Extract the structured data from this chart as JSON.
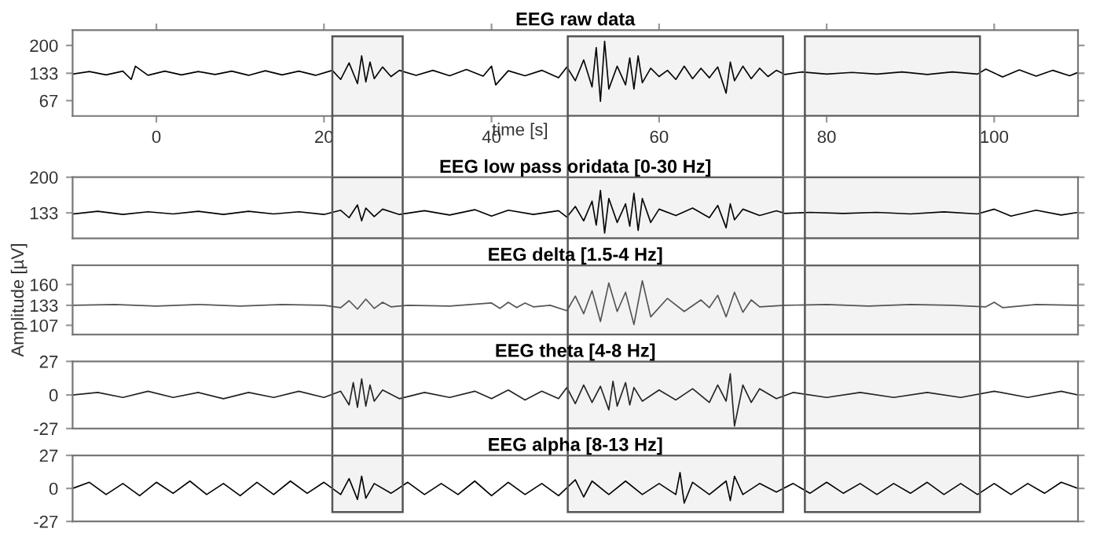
{
  "chart_data": [
    {
      "type": "line",
      "title": "EEG raw data",
      "xlabel": "time [s]",
      "xlim": [
        -10,
        110
      ],
      "xticks": [
        0,
        20,
        40,
        60,
        80,
        100
      ],
      "ylim": [
        30,
        237
      ],
      "yticks": [
        67,
        133,
        200
      ],
      "series": [
        {
          "color": "#000000",
          "x": [
            -10,
            -8,
            -6,
            -4,
            -3,
            -2.5,
            -1,
            1,
            3,
            5,
            7,
            9,
            11,
            13,
            15,
            17,
            19,
            21,
            22,
            23,
            24,
            24.5,
            25,
            25.5,
            26,
            27,
            28,
            29,
            31,
            33,
            35,
            37,
            39,
            40,
            40.5,
            42,
            44,
            46,
            48,
            49,
            50,
            51,
            52,
            52.5,
            53,
            53.5,
            54,
            55,
            56,
            56.5,
            57,
            57.5,
            58,
            59,
            60,
            61,
            62,
            63,
            64,
            65,
            66,
            67,
            68,
            68.5,
            69,
            70,
            71,
            72,
            73,
            74,
            75,
            77,
            80,
            83,
            86,
            89,
            92,
            95,
            98,
            99,
            101,
            103,
            105,
            107,
            109,
            110
          ],
          "values": [
            131,
            137,
            129,
            138,
            118,
            150,
            128,
            138,
            129,
            137,
            130,
            138,
            128,
            139,
            129,
            138,
            128,
            140,
            118,
            158,
            108,
            175,
            112,
            160,
            120,
            148,
            125,
            140,
            128,
            140,
            127,
            142,
            126,
            150,
            105,
            139,
            127,
            140,
            122,
            148,
            115,
            165,
            100,
            195,
            65,
            210,
            95,
            150,
            105,
            170,
            95,
            175,
            110,
            145,
            125,
            140,
            118,
            150,
            120,
            145,
            122,
            148,
            85,
            160,
            115,
            150,
            120,
            145,
            125,
            140,
            130,
            136,
            131,
            135,
            131,
            136,
            130,
            136,
            131,
            143,
            124,
            141,
            126,
            140,
            127,
            135
          ]
        }
      ],
      "bands": [
        {
          "axis": "x",
          "from": 21,
          "to": 29.4,
          "color": "#555555"
        },
        {
          "axis": "x",
          "from": 49.1,
          "to": 74.8,
          "color": "#555555"
        },
        {
          "axis": "x",
          "from": 77.4,
          "to": 98.3,
          "color": "#555555"
        }
      ]
    },
    {
      "type": "line",
      "title": "EEG low pass oridata [0-30 Hz]",
      "xlim": [
        -10,
        110
      ],
      "bands": [
        {
          "axis": "x",
          "from": 21,
          "to": 29.4,
          "color": "#555555"
        },
        {
          "axis": "x",
          "from": 49.1,
          "to": 74.8,
          "color": "#555555"
        },
        {
          "axis": "x",
          "from": 77.4,
          "to": 98.3,
          "color": "#555555"
        }
      ],
      "ylim": [
        85,
        200
      ],
      "yticks": [
        133,
        200
      ],
      "tick_labels": "y",
      "series": [
        {
          "color": "#000000",
          "x": [
            -10,
            -7,
            -4,
            -1,
            2,
            5,
            8,
            11,
            14,
            17,
            20,
            22,
            23,
            24,
            24.5,
            25,
            26,
            27,
            29,
            32,
            35,
            38,
            40,
            42,
            45,
            48,
            49,
            50,
            51,
            52,
            52.5,
            53,
            53.5,
            54,
            55,
            56,
            56.5,
            57,
            57.5,
            58,
            59,
            60,
            62,
            64,
            66,
            67,
            68,
            68.5,
            69,
            70,
            72,
            74,
            75,
            78,
            82,
            86,
            90,
            94,
            98,
            100,
            102,
            105,
            108,
            110
          ],
          "values": [
            131,
            136,
            130,
            135,
            131,
            136,
            130,
            136,
            131,
            135,
            130,
            138,
            124,
            148,
            118,
            142,
            126,
            140,
            130,
            137,
            129,
            139,
            127,
            138,
            130,
            137,
            125,
            145,
            118,
            155,
            110,
            175,
            95,
            160,
            115,
            150,
            108,
            170,
            100,
            160,
            115,
            140,
            128,
            142,
            124,
            147,
            105,
            150,
            120,
            140,
            128,
            137,
            132,
            134,
            132,
            134,
            131,
            135,
            131,
            140,
            127,
            138,
            129,
            134
          ]
        }
      ]
    },
    {
      "type": "line",
      "title": "EEG delta [1.5-4 Hz]",
      "ylabel": "Amplitude [µV]",
      "xlim": [
        -10,
        110
      ],
      "bands": [
        {
          "axis": "x",
          "from": 21,
          "to": 29.4,
          "color": "#555555"
        },
        {
          "axis": "x",
          "from": 49.1,
          "to": 74.8,
          "color": "#555555"
        },
        {
          "axis": "x",
          "from": 77.4,
          "to": 98.3,
          "color": "#555555"
        }
      ],
      "ylim": [
        95,
        185
      ],
      "yticks": [
        107,
        133,
        160
      ],
      "tick_labels": "y",
      "series": [
        {
          "color": "#555555",
          "x": [
            -10,
            -5,
            0,
            5,
            10,
            15,
            20,
            22,
            23,
            24,
            25,
            26,
            27,
            28,
            30,
            35,
            40,
            41,
            42,
            43,
            44,
            45,
            47,
            49,
            50,
            51,
            52,
            53,
            54,
            55,
            56,
            57,
            58,
            59,
            61,
            63,
            65,
            66,
            67,
            68,
            69,
            70,
            71,
            72,
            75,
            80,
            85,
            90,
            95,
            99,
            100,
            101,
            105,
            110
          ],
          "values": [
            133,
            134,
            132,
            134,
            132,
            134,
            133,
            130,
            139,
            128,
            141,
            129,
            137,
            131,
            133,
            132,
            136,
            129,
            137,
            130,
            136,
            131,
            133,
            126,
            145,
            122,
            152,
            112,
            162,
            125,
            150,
            108,
            165,
            118,
            142,
            125,
            140,
            130,
            146,
            118,
            150,
            124,
            140,
            131,
            133,
            134,
            132,
            134,
            133,
            131,
            137,
            130,
            134,
            133
          ]
        }
      ]
    },
    {
      "type": "line",
      "title": "EEG theta [4-8 Hz]",
      "xlim": [
        -10,
        110
      ],
      "bands": [
        {
          "axis": "x",
          "from": 21,
          "to": 29.4,
          "color": "#555555"
        },
        {
          "axis": "x",
          "from": 49.1,
          "to": 74.8,
          "color": "#555555"
        },
        {
          "axis": "x",
          "from": 77.4,
          "to": 98.3,
          "color": "#555555"
        }
      ],
      "ylim": [
        -27,
        27
      ],
      "yticks": [
        -27,
        0,
        27
      ],
      "tick_labels": "y",
      "series": [
        {
          "color": "#222222",
          "x": [
            -10,
            -7,
            -4,
            -1,
            2,
            5,
            8,
            11,
            14,
            17,
            20,
            22,
            23,
            23.5,
            24,
            24.5,
            25,
            25.5,
            26,
            27,
            29,
            32,
            35,
            38,
            40,
            42,
            44,
            46,
            48,
            49,
            50,
            51,
            52,
            53,
            54,
            54.5,
            55,
            56,
            56.5,
            57,
            58,
            60,
            62,
            64,
            66,
            67,
            68,
            68.5,
            69,
            70,
            71,
            72,
            74,
            76,
            80,
            84,
            88,
            92,
            96,
            100,
            104,
            108,
            110
          ],
          "values": [
            0,
            2,
            -2,
            3,
            -2,
            2,
            -3,
            2,
            -2,
            3,
            -2,
            3,
            -8,
            10,
            -10,
            13,
            -9,
            8,
            -5,
            4,
            -3,
            2,
            -2,
            3,
            -3,
            4,
            -4,
            3,
            -3,
            6,
            -7,
            8,
            -6,
            7,
            -12,
            11,
            -9,
            10,
            -8,
            6,
            -5,
            4,
            -4,
            5,
            -6,
            8,
            -5,
            17,
            -25,
            8,
            -6,
            5,
            -3,
            2,
            -2,
            2,
            -2,
            2,
            -2,
            3,
            -2,
            3,
            0
          ]
        }
      ]
    },
    {
      "type": "line",
      "title": "EEG alpha [8-13 Hz]",
      "xlim": [
        -10,
        110
      ],
      "bands": [
        {
          "axis": "x",
          "from": 21,
          "to": 29.4,
          "color": "#555555"
        },
        {
          "axis": "x",
          "from": 49.1,
          "to": 74.8,
          "color": "#555555"
        },
        {
          "axis": "x",
          "from": 77.4,
          "to": 98.3,
          "color": "#555555"
        }
      ],
      "ylim": [
        -27,
        27
      ],
      "yticks": [
        -27,
        0,
        27
      ],
      "tick_labels": "y",
      "series": [
        {
          "color": "#000000",
          "x": [
            -10,
            -8,
            -6,
            -4,
            -2,
            0,
            2,
            4,
            6,
            8,
            10,
            12,
            14,
            16,
            18,
            20,
            22,
            23,
            24,
            24.5,
            25,
            26,
            28,
            30,
            32,
            34,
            36,
            38,
            40,
            42,
            44,
            46,
            48,
            50,
            51,
            52,
            54,
            56,
            58,
            60,
            62,
            62.5,
            63,
            64,
            66,
            68,
            68.5,
            69,
            70,
            72,
            74,
            76,
            78,
            80,
            82,
            84,
            86,
            88,
            90,
            92,
            94,
            96,
            98,
            100,
            102,
            104,
            106,
            108,
            110
          ],
          "values": [
            0,
            5,
            -5,
            4,
            -6,
            5,
            -4,
            6,
            -5,
            4,
            -6,
            5,
            -5,
            6,
            -4,
            5,
            -5,
            8,
            -9,
            10,
            -8,
            4,
            -4,
            5,
            -5,
            4,
            -5,
            6,
            -6,
            5,
            -5,
            4,
            -6,
            7,
            -7,
            6,
            -5,
            6,
            -5,
            4,
            -5,
            13,
            -12,
            5,
            -5,
            6,
            -10,
            10,
            -5,
            4,
            -3,
            4,
            -4,
            5,
            -4,
            4,
            -5,
            4,
            -4,
            5,
            -5,
            4,
            -5,
            4,
            -5,
            4,
            -4,
            5,
            0
          ]
        }
      ]
    }
  ]
}
